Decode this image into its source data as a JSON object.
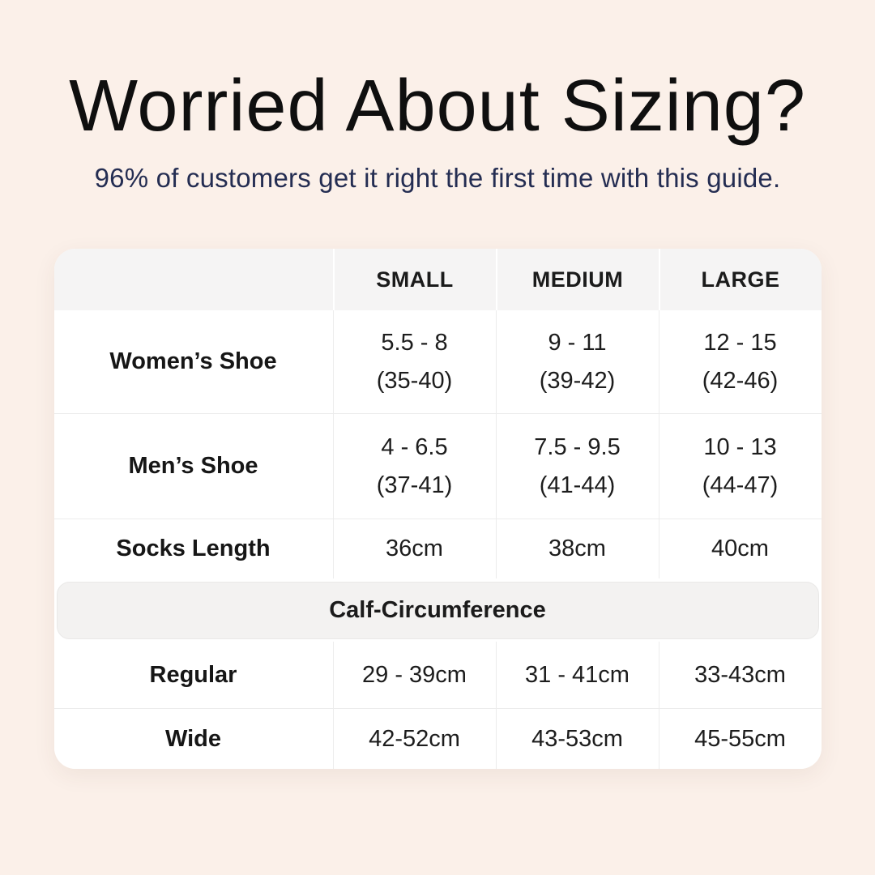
{
  "header": {
    "title": "Worried About Sizing?",
    "subtitle": "96% of customers get it right the first time with this guide."
  },
  "colors": {
    "background": "#fbf0e9",
    "subtitle_text": "#242d52",
    "card_background": "#ffffff",
    "table_header_background": "#f5f4f4",
    "section_band_background": "#f3f2f1",
    "divider": "#ececec",
    "text": "#141414"
  },
  "table": {
    "columns": [
      "SMALL",
      "MEDIUM",
      "LARGE"
    ],
    "shoe_rows": [
      {
        "label": "Women’s Shoe",
        "cells": [
          {
            "range": "5.5 - 8",
            "eu": "(35-40)"
          },
          {
            "range": "9 - 11",
            "eu": "(39-42)"
          },
          {
            "range": "12 - 15",
            "eu": "(42-46)"
          }
        ]
      },
      {
        "label": "Men’s Shoe",
        "cells": [
          {
            "range": "4 - 6.5",
            "eu": "(37-41)"
          },
          {
            "range": "7.5 - 9.5",
            "eu": "(41-44)"
          },
          {
            "range": "10 - 13",
            "eu": "(44-47)"
          }
        ]
      }
    ],
    "socks_row": {
      "label": "Socks Length",
      "cells": [
        "36cm",
        "38cm",
        "40cm"
      ]
    },
    "section_header": "Calf-Circumference",
    "calf_rows": [
      {
        "label": "Regular",
        "cells": [
          "29 - 39cm",
          "31 - 41cm",
          "33-43cm"
        ]
      },
      {
        "label": "Wide",
        "cells": [
          "42-52cm",
          "43-53cm",
          "45-55cm"
        ]
      }
    ]
  }
}
